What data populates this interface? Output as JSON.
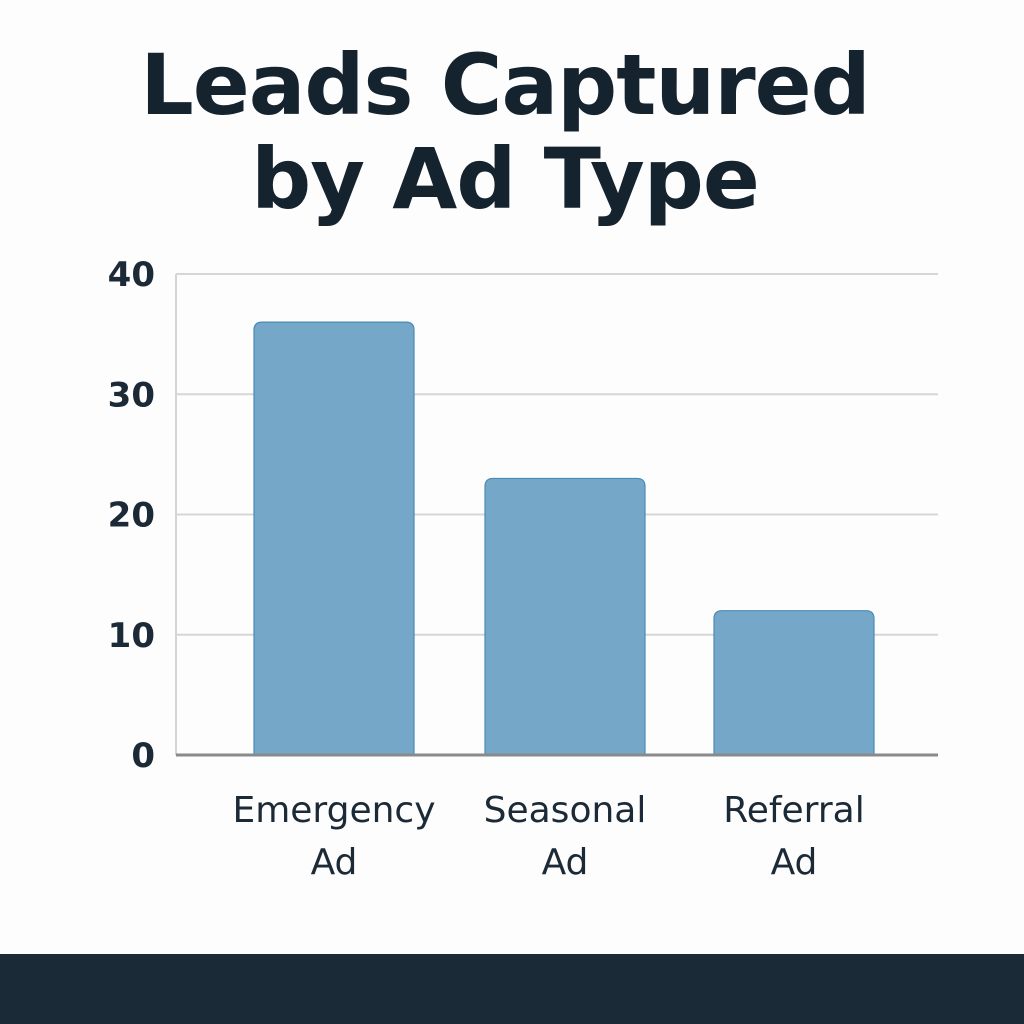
{
  "chart_data": {
    "type": "bar",
    "title": "Leads Captured by Ad Type",
    "title_lines": [
      "Leads Captured",
      "by Ad Type"
    ],
    "categories": [
      [
        "Emergency",
        "Ad"
      ],
      [
        "Seasonal",
        "Ad"
      ],
      [
        "Referral",
        "Ad"
      ]
    ],
    "values": [
      36,
      23,
      12
    ],
    "xlabel": "",
    "ylabel": "",
    "ylim": [
      0,
      40
    ],
    "yticks": [
      0,
      10,
      20,
      30,
      40
    ],
    "grid": true,
    "bar_color": "#75a8c8",
    "bar_edge_color": "#4a8ab5"
  }
}
